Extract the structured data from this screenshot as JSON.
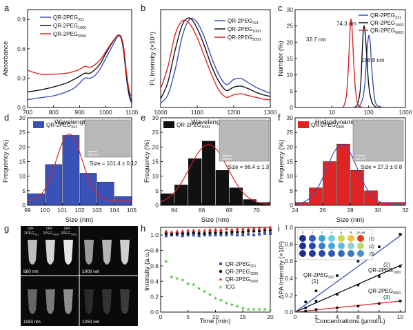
{
  "colors": {
    "blue": "#3a52b8",
    "black": "#111111",
    "red": "#e02323",
    "green": "#4fc24f"
  },
  "panels": {
    "a": {
      "letter": "a",
      "xlabel": "Wavelength (nm)",
      "ylabel": "Absorbance",
      "xlim": [
        700,
        1100
      ],
      "ylim": [
        0,
        1.0
      ],
      "xticks": [
        700,
        800,
        900,
        1000,
        1100
      ],
      "yticks": [
        0.0,
        0.3,
        0.6,
        0.9
      ],
      "xtick_labels": [
        "700",
        "800",
        "900",
        "1000",
        "1100"
      ],
      "ytick_labels": [
        "0.0",
        "0.3",
        "0.6",
        "0.9"
      ],
      "legend": [
        "QR-2PEG",
        "QR-2PEG",
        "QR-2PEG"
      ],
      "legend_sub": [
        "321",
        "1000",
        "5000"
      ]
    },
    "b": {
      "letter": "b",
      "xlabel": "Wavelengh (nm)",
      "ylabel": "FL Intensity (×10⁴)",
      "xlim": [
        1000,
        1300
      ],
      "ylim": [
        0,
        1.15
      ],
      "xticks": [
        1000,
        1100,
        1200,
        1300
      ],
      "xtick_labels": [
        "1000",
        "1100",
        "1200",
        "1300"
      ],
      "legend": [
        "QR-2PEG",
        "QR-2PEG",
        "QR-2PEG"
      ],
      "legend_sub": [
        "321",
        "1000",
        "5000"
      ]
    },
    "c": {
      "letter": "c",
      "xlabel": "Hydrodynamic size (nm)",
      "ylabel": "Number (%)",
      "xlim": [
        1,
        1000
      ],
      "ylim": [
        0,
        30
      ],
      "yticks": [
        0,
        5,
        10,
        15,
        20,
        25,
        30
      ],
      "ytick_labels": [
        "0",
        "5",
        "10",
        "15",
        "20",
        "25",
        "30"
      ],
      "xtick_labels": [
        "10",
        "100",
        "1000"
      ],
      "legend": [
        "QR-2PEG",
        "QR-2PEG",
        "QR-2PEG"
      ],
      "legend_sub": [
        "321",
        "1000",
        "5000"
      ],
      "annotations": [
        "32.7 nm",
        "74.3 nm",
        "106.8 nm"
      ]
    },
    "d": {
      "letter": "d",
      "xlabel": "Size (nm)",
      "ylabel": "Frequency (%)",
      "legend": "QR-2PEG",
      "legend_sub": "321",
      "size_text": "Size = 101.4 ± 0.12",
      "scale_text": "200 nm",
      "xtick_labels": [
        "99",
        "100",
        "101",
        "102",
        "103",
        "104",
        "105"
      ],
      "ytick_labels": [
        "0",
        "5",
        "10",
        "15",
        "20",
        "25",
        "30"
      ]
    },
    "e": {
      "letter": "e",
      "xlabel": "Size (nm)",
      "ylabel": "Frequency (%)",
      "legend": "QR-2PEG",
      "legend_sub": "1000",
      "size_text": "Size = 66.4 ± 1.3",
      "scale_text": "200 nm",
      "xtick_labels": [
        "64",
        "66",
        "68",
        "70"
      ],
      "ytick_labels": [
        "0",
        "5",
        "10",
        "15",
        "20",
        "25",
        "30"
      ]
    },
    "f": {
      "letter": "f",
      "xlabel": "Size (nm)",
      "ylabel": "Frequency (%)",
      "legend": "QR-2PEG",
      "legend_sub": "5000",
      "size_text": "Size = 27.3 ± 0.8",
      "scale_text": "200 nm",
      "xtick_labels": [
        "24",
        "26",
        "28",
        "30",
        "32"
      ],
      "ytick_labels": [
        "0",
        "5",
        "10",
        "15",
        "20",
        "25",
        "30"
      ]
    },
    "g": {
      "letter": "g",
      "tube_label_prefix": "QR-",
      "tube_labels": [
        "2PEG",
        "2PEG",
        "2PEG"
      ],
      "tube_label_subs": [
        "321",
        "1000",
        "5000"
      ],
      "wavelengths": [
        "880 nm",
        "1000 nm",
        "1150 nm",
        "1250 nm"
      ]
    },
    "h": {
      "letter": "h",
      "xlabel": "Time (min)",
      "ylabel": "Intensity (a.u.)",
      "xtick_labels": [
        "0",
        "5",
        "10",
        "15",
        "20"
      ],
      "ytick_labels": [
        "0.0",
        "0.2",
        "0.4",
        "0.6",
        "0.8",
        "1.0"
      ],
      "legend": [
        "QR-2PEG",
        "QR-2PEG",
        "QR-2PEG",
        "ICG"
      ],
      "legend_sub": [
        "321",
        "1000",
        "5000",
        ""
      ]
    },
    "i": {
      "letter": "i",
      "xlabel": "Concentrations (μmol/L)",
      "ylabel": "ΔPA Intensity (×10²)",
      "xtick_labels": [
        "0",
        "2",
        "4",
        "6",
        "8",
        "10"
      ],
      "ytick_labels": [
        "0.0",
        "0.2",
        "0.4",
        "0.6",
        "0.8",
        "1.0"
      ],
      "well_header": [
        "0",
        "1",
        "2",
        "4",
        "6",
        "8",
        "10 μM"
      ],
      "row_labels": [
        "(1)",
        "(2)",
        "(3)"
      ],
      "line_labels": [
        "QR-2PEG",
        "QR-2PEG",
        "QR-2PEG"
      ],
      "line_label_subs": [
        "321",
        "1000",
        "5000"
      ],
      "line_label_nums": [
        "(1)",
        "(2)",
        "(3)"
      ]
    }
  },
  "chart_data": [
    {
      "panel": "a",
      "type": "line",
      "xlim": [
        700,
        1100
      ],
      "ylim": [
        0,
        1.0
      ],
      "series": [
        {
          "name": "QR-2PEG321",
          "color": "blue",
          "x": [
            700,
            750,
            800,
            850,
            880,
            900,
            920,
            940,
            960,
            980,
            1000,
            1020,
            1040,
            1050,
            1060,
            1070,
            1080,
            1090,
            1100
          ],
          "y": [
            0.08,
            0.1,
            0.12,
            0.16,
            0.2,
            0.25,
            0.3,
            0.3,
            0.33,
            0.4,
            0.5,
            0.6,
            0.7,
            0.73,
            0.7,
            0.55,
            0.3,
            0.12,
            0.04
          ]
        },
        {
          "name": "QR-2PEG1000",
          "color": "black",
          "x": [
            700,
            750,
            800,
            850,
            880,
            900,
            920,
            940,
            960,
            980,
            1000,
            1020,
            1040,
            1050,
            1060,
            1070,
            1080,
            1090,
            1100
          ],
          "y": [
            0.16,
            0.18,
            0.21,
            0.25,
            0.29,
            0.32,
            0.35,
            0.35,
            0.39,
            0.45,
            0.55,
            0.64,
            0.72,
            0.74,
            0.71,
            0.57,
            0.32,
            0.14,
            0.06
          ]
        },
        {
          "name": "QR-2PEG5000",
          "color": "red",
          "x": [
            700,
            750,
            800,
            850,
            880,
            900,
            920,
            940,
            960,
            980,
            1000,
            1020,
            1040,
            1050,
            1060,
            1070,
            1080,
            1090,
            1100
          ],
          "y": [
            0.38,
            0.34,
            0.34,
            0.35,
            0.37,
            0.39,
            0.42,
            0.41,
            0.44,
            0.49,
            0.57,
            0.65,
            0.72,
            0.74,
            0.72,
            0.6,
            0.36,
            0.18,
            0.1
          ]
        }
      ]
    },
    {
      "panel": "b",
      "type": "line",
      "xlim": [
        1000,
        1300
      ],
      "ylim": [
        0,
        1.15
      ],
      "series": [
        {
          "name": "QR-2PEG321",
          "color": "blue",
          "x": [
            1000,
            1020,
            1040,
            1060,
            1080,
            1100,
            1120,
            1140,
            1160,
            1180,
            1200,
            1220,
            1240,
            1260,
            1280,
            1300
          ],
          "y": [
            0.05,
            0.15,
            0.45,
            0.85,
            1.04,
            1.0,
            0.82,
            0.58,
            0.38,
            0.27,
            0.33,
            0.34,
            0.29,
            0.24,
            0.2,
            0.17
          ]
        },
        {
          "name": "QR-2PEG1000",
          "color": "black",
          "x": [
            1000,
            1020,
            1040,
            1060,
            1080,
            1100,
            1120,
            1140,
            1160,
            1180,
            1200,
            1220,
            1240,
            1260,
            1280,
            1300
          ],
          "y": [
            0.1,
            0.3,
            0.68,
            0.98,
            1.05,
            0.93,
            0.72,
            0.48,
            0.3,
            0.2,
            0.24,
            0.25,
            0.22,
            0.18,
            0.15,
            0.13
          ]
        },
        {
          "name": "QR-2PEG5000",
          "color": "red",
          "x": [
            1000,
            1020,
            1040,
            1060,
            1080,
            1100,
            1120,
            1140,
            1160,
            1180,
            1200,
            1220,
            1240,
            1260,
            1280,
            1300
          ],
          "y": [
            0.22,
            0.48,
            0.86,
            1.02,
            0.98,
            0.82,
            0.6,
            0.38,
            0.2,
            0.12,
            0.15,
            0.16,
            0.14,
            0.12,
            0.1,
            0.09
          ]
        }
      ]
    },
    {
      "panel": "c",
      "type": "line",
      "xscale": "log",
      "xlim": [
        1,
        1000
      ],
      "ylim": [
        0,
        30
      ],
      "series": [
        {
          "name": "QR-2PEG321",
          "color": "blue",
          "x": [
            50,
            60,
            70,
            80,
            90,
            100,
            110,
            120,
            140,
            160,
            200,
            250
          ],
          "y": [
            0,
            1,
            3,
            8,
            17,
            22,
            20,
            13,
            4,
            1,
            0.3,
            0
          ]
        },
        {
          "name": "QR-2PEG1000",
          "color": "black",
          "x": [
            40,
            50,
            60,
            65,
            70,
            75,
            80,
            90,
            100,
            120,
            150,
            200
          ],
          "y": [
            0,
            1,
            6,
            14,
            22,
            25,
            23,
            15,
            7,
            2,
            0.3,
            0
          ]
        },
        {
          "name": "QR-2PEG5000",
          "color": "red",
          "x": [
            20,
            22,
            25,
            28,
            31,
            33,
            35,
            38,
            42,
            48,
            55,
            70
          ],
          "y": [
            0,
            1,
            4,
            12,
            23,
            27,
            25,
            17,
            8,
            2,
            0.5,
            0
          ]
        }
      ]
    },
    {
      "panel": "d",
      "type": "bar",
      "xlim": [
        99,
        105
      ],
      "ylim": [
        0,
        30
      ],
      "color": "blue",
      "x": [
        99.5,
        100.5,
        101.5,
        102.5,
        103.5,
        104.5
      ],
      "values": [
        4,
        14,
        24,
        11,
        8,
        3
      ],
      "fit": {
        "mean": 101.4,
        "sigma": 0.75,
        "peak": 23,
        "offset": 1.5
      }
    },
    {
      "panel": "e",
      "type": "bar",
      "xlim": [
        63,
        71
      ],
      "ylim": [
        0,
        30
      ],
      "color": "black",
      "x": [
        63.5,
        64.5,
        65.5,
        66.5,
        67.5,
        68.5,
        69.5,
        70.5
      ],
      "values": [
        4,
        7,
        16,
        22,
        12,
        6,
        2,
        1
      ],
      "fit": {
        "mean": 66.5,
        "sigma": 1.4,
        "peak": 20.5,
        "offset": 0.3
      }
    },
    {
      "panel": "f",
      "type": "bar",
      "xlim": [
        24,
        32
      ],
      "ylim": [
        0,
        30
      ],
      "color": "red",
      "x": [
        24.5,
        25.5,
        26.5,
        27.5,
        28.5,
        29.5,
        30.5,
        31.5
      ],
      "values": [
        1,
        6,
        15,
        21,
        12,
        5,
        1,
        1
      ],
      "fit": {
        "mean": 27.4,
        "sigma": 1.1,
        "peak": 20.5,
        "offset": 0.3
      }
    },
    {
      "panel": "h",
      "type": "scatter",
      "xlim": [
        0,
        20
      ],
      "ylim": [
        0,
        1.1
      ],
      "series": [
        {
          "name": "QR-2PEG321",
          "color": "blue",
          "marker": "square",
          "x": [
            1,
            2,
            3,
            4,
            5,
            6,
            7,
            8,
            9,
            10,
            11,
            12,
            13,
            14,
            15,
            16,
            17,
            18,
            19,
            20
          ],
          "y": [
            0.99,
            1.0,
            1.0,
            0.99,
            1.0,
            1.0,
            0.99,
            1.0,
            1.0,
            1.0,
            1.0,
            1.0,
            1.01,
            1.0,
            1.0,
            1.01,
            1.0,
            1.01,
            1.02,
            1.02
          ]
        },
        {
          "name": "QR-2PEG1000",
          "color": "black",
          "marker": "circle",
          "x": [
            1,
            2,
            3,
            4,
            5,
            6,
            7,
            8,
            9,
            10,
            11,
            12,
            13,
            14,
            15,
            16,
            17,
            18,
            19,
            20
          ],
          "y": [
            1.02,
            1.01,
            1.02,
            1.02,
            1.02,
            1.03,
            1.02,
            1.02,
            1.03,
            1.03,
            1.03,
            1.03,
            1.04,
            1.04,
            1.04,
            1.05,
            1.05,
            1.05,
            1.06,
            1.06
          ]
        },
        {
          "name": "QR-2PEG5000",
          "color": "red",
          "marker": "triangle",
          "x": [
            1,
            2,
            3,
            4,
            5,
            6,
            7,
            8,
            9,
            10,
            11,
            12,
            13,
            14,
            15,
            16,
            17,
            18,
            19,
            20
          ],
          "y": [
            1.05,
            1.04,
            1.05,
            1.05,
            1.06,
            1.06,
            1.06,
            1.06,
            1.07,
            1.07,
            1.07,
            1.08,
            1.07,
            1.08,
            1.08,
            1.08,
            1.09,
            1.09,
            1.09,
            1.1
          ]
        },
        {
          "name": "ICG",
          "color": "green",
          "marker": "star",
          "x": [
            1,
            2,
            3,
            4,
            5,
            6,
            7,
            8,
            9,
            10,
            11,
            12,
            13,
            14,
            15,
            16,
            17,
            18,
            19,
            20
          ],
          "y": [
            0.66,
            0.46,
            0.44,
            0.42,
            0.37,
            0.36,
            0.31,
            0.27,
            0.23,
            0.18,
            0.16,
            0.12,
            0.1,
            0.08,
            0.05,
            0.04,
            0.04,
            0.04,
            0.04,
            0.04
          ]
        }
      ]
    },
    {
      "panel": "i",
      "type": "scatter",
      "xlim": [
        0,
        10.5
      ],
      "ylim": [
        0,
        1.0
      ],
      "series": [
        {
          "name": "QR-2PEG321",
          "color": "blue",
          "x": [
            1,
            2,
            4,
            6,
            8,
            10
          ],
          "y": [
            0.12,
            0.25,
            0.43,
            0.6,
            0.77,
            0.92
          ],
          "fit": [
            0,
            0.09
          ]
        },
        {
          "name": "QR-2PEG1000",
          "color": "black",
          "x": [
            1,
            2,
            4,
            6,
            8,
            10
          ],
          "y": [
            0.05,
            0.13,
            0.21,
            0.32,
            0.42,
            0.54
          ],
          "fit": [
            0,
            0.055
          ]
        },
        {
          "name": "QR-2PEG5000",
          "color": "red",
          "x": [
            1,
            2,
            4,
            6,
            8,
            10
          ],
          "y": [
            0.01,
            0.03,
            0.05,
            0.07,
            0.1,
            0.13
          ],
          "fit": [
            0,
            0.013
          ]
        }
      ]
    }
  ]
}
